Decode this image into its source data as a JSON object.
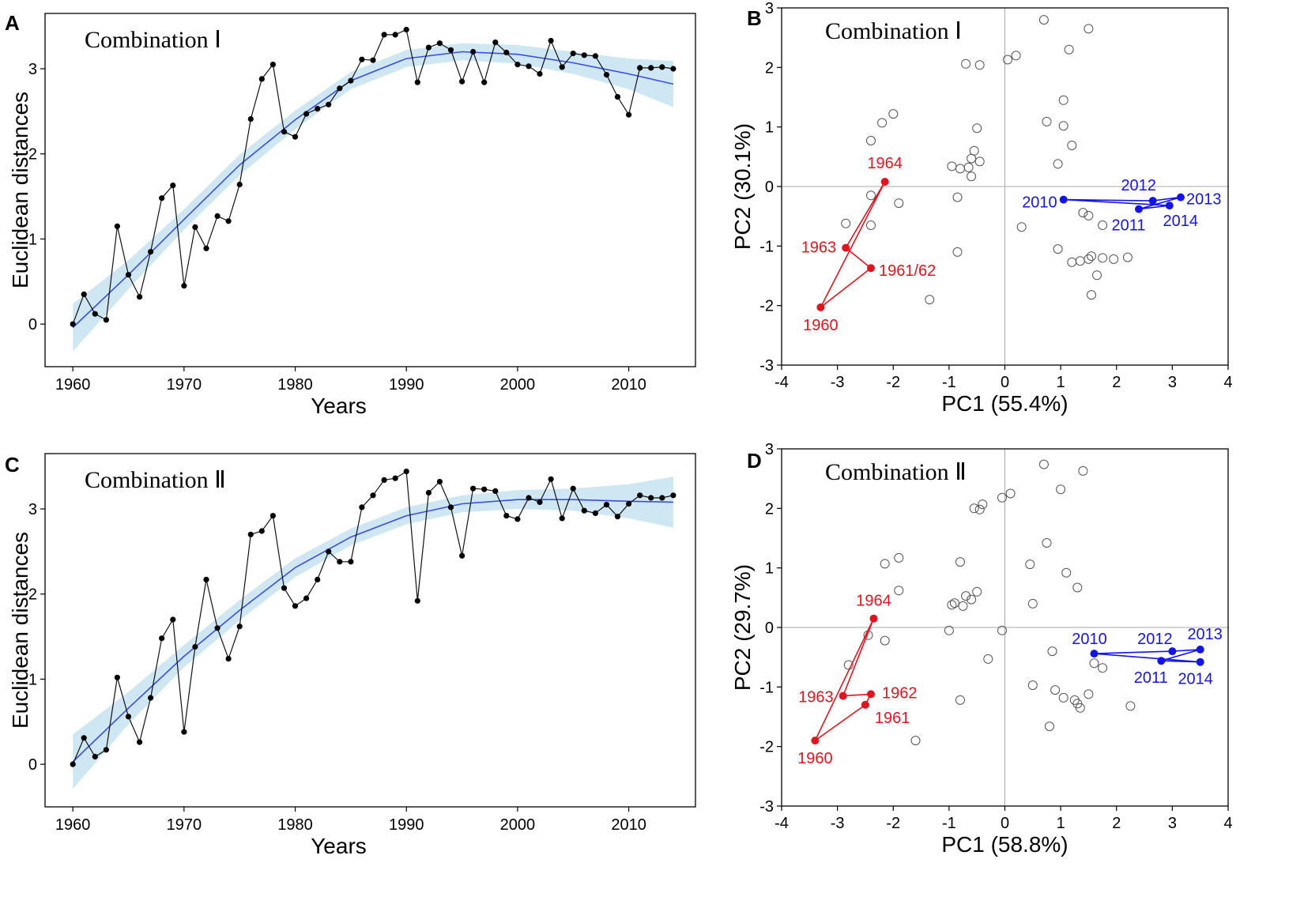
{
  "chart_data": [
    {
      "panel": "A",
      "type": "line",
      "title": "Combination Ⅰ",
      "xlabel": "Years",
      "ylabel": "Euclidean distances",
      "xlim": [
        1957.5,
        2016
      ],
      "ylim": [
        -0.5,
        3.65
      ],
      "xticks": [
        1960,
        1970,
        1980,
        1990,
        2000,
        2010
      ],
      "yticks": [
        0,
        1,
        2,
        3
      ],
      "series": [
        {
          "name": "observed",
          "x": [
            1960,
            1961,
            1962,
            1963,
            1964,
            1965,
            1966,
            1967,
            1968,
            1969,
            1970,
            1971,
            1972,
            1973,
            1974,
            1975,
            1976,
            1977,
            1978,
            1979,
            1980,
            1981,
            1982,
            1983,
            1984,
            1985,
            1986,
            1987,
            1988,
            1989,
            1990,
            1991,
            1992,
            1993,
            1994,
            1995,
            1996,
            1997,
            1998,
            1999,
            2000,
            2001,
            2002,
            2003,
            2004,
            2005,
            2006,
            2007,
            2008,
            2009,
            2010,
            2011,
            2012,
            2013,
            2014
          ],
          "y": [
            0.0,
            0.35,
            0.12,
            0.05,
            1.15,
            0.58,
            0.32,
            0.85,
            1.48,
            1.63,
            0.45,
            1.14,
            0.89,
            1.27,
            1.21,
            1.64,
            2.41,
            2.88,
            3.05,
            2.26,
            2.2,
            2.47,
            2.53,
            2.58,
            2.77,
            2.86,
            3.11,
            3.1,
            3.4,
            3.4,
            3.46,
            2.84,
            3.25,
            3.3,
            3.22,
            2.85,
            3.2,
            2.84,
            3.31,
            3.19,
            3.05,
            3.03,
            2.94,
            3.33,
            3.02,
            3.18,
            3.16,
            3.15,
            2.93,
            2.67,
            2.46,
            3.01,
            3.01,
            3.02,
            3.0
          ]
        },
        {
          "name": "fit",
          "x": [
            1960,
            1965,
            1970,
            1975,
            1980,
            1985,
            1990,
            1995,
            2000,
            2005,
            2010,
            2014
          ],
          "y": [
            -0.04,
            0.58,
            1.23,
            1.87,
            2.4,
            2.86,
            3.12,
            3.2,
            3.17,
            3.07,
            2.94,
            2.82
          ]
        }
      ],
      "band_halfwidth": [
        0.28,
        0.17,
        0.12,
        0.12,
        0.11,
        0.1,
        0.1,
        0.1,
        0.11,
        0.13,
        0.18,
        0.27
      ]
    },
    {
      "panel": "B",
      "type": "scatter",
      "title": "Combination Ⅰ",
      "xlabel": "PC1 (55.4%)",
      "ylabel": "PC2 (30.1%)",
      "xlim": [
        -4,
        4
      ],
      "ylim": [
        -3,
        3
      ],
      "xticks": [
        -4,
        -3,
        -2,
        -1,
        0,
        1,
        2,
        3,
        4
      ],
      "yticks": [
        -3,
        -2,
        -1,
        0,
        1,
        2,
        3
      ],
      "points": [
        [
          -2.4,
          0.77
        ],
        [
          -2.2,
          1.07
        ],
        [
          -2.0,
          1.22
        ],
        [
          -2.4,
          -0.15
        ],
        [
          -1.9,
          -0.28
        ],
        [
          -2.85,
          -0.62
        ],
        [
          -2.4,
          -0.65
        ],
        [
          -1.35,
          -1.9
        ],
        [
          -0.7,
          2.06
        ],
        [
          -0.45,
          2.04
        ],
        [
          0.05,
          2.13
        ],
        [
          0.2,
          2.2
        ],
        [
          0.7,
          2.8
        ],
        [
          1.15,
          2.3
        ],
        [
          1.5,
          2.65
        ],
        [
          -0.5,
          0.98
        ],
        [
          -0.95,
          0.34
        ],
        [
          -0.8,
          0.3
        ],
        [
          -0.6,
          0.47
        ],
        [
          -0.55,
          0.6
        ],
        [
          -0.65,
          0.32
        ],
        [
          -0.45,
          0.42
        ],
        [
          -0.6,
          0.17
        ],
        [
          -0.85,
          -0.18
        ],
        [
          -0.85,
          -1.1
        ],
        [
          0.75,
          1.09
        ],
        [
          1.05,
          1.45
        ],
        [
          1.05,
          1.02
        ],
        [
          0.95,
          0.38
        ],
        [
          1.2,
          0.69
        ],
        [
          0.3,
          -0.68
        ],
        [
          0.95,
          -1.05
        ],
        [
          1.4,
          -0.44
        ],
        [
          1.5,
          -0.49
        ],
        [
          1.75,
          -0.65
        ],
        [
          1.2,
          -1.27
        ],
        [
          1.35,
          -1.25
        ],
        [
          1.5,
          -1.22
        ],
        [
          1.55,
          -1.17
        ],
        [
          1.75,
          -1.2
        ],
        [
          1.95,
          -1.22
        ],
        [
          2.2,
          -1.19
        ],
        [
          1.65,
          -1.49
        ],
        [
          1.55,
          -1.82
        ]
      ],
      "early_group": {
        "labels": [
          "1964",
          "1963",
          "1961/62",
          "1960"
        ],
        "points": [
          [
            -2.15,
            0.08
          ],
          [
            -2.85,
            -1.03
          ],
          [
            -2.4,
            -1.37
          ],
          [
            -3.3,
            -2.03
          ]
        ]
      },
      "late_group": {
        "labels": [
          "2010",
          "2012",
          "2013",
          "2011",
          "2014"
        ],
        "points": [
          [
            1.05,
            -0.22
          ],
          [
            2.65,
            -0.24
          ],
          [
            3.15,
            -0.18
          ],
          [
            2.4,
            -0.38
          ],
          [
            2.95,
            -0.32
          ]
        ]
      }
    },
    {
      "panel": "C",
      "type": "line",
      "title": "Combination Ⅱ",
      "xlabel": "Years",
      "ylabel": "Euclidean distances",
      "xlim": [
        1957.5,
        2016
      ],
      "ylim": [
        -0.5,
        3.65
      ],
      "xticks": [
        1960,
        1970,
        1980,
        1990,
        2000,
        2010
      ],
      "yticks": [
        0,
        1,
        2,
        3
      ],
      "series": [
        {
          "name": "observed",
          "x": [
            1960,
            1961,
            1962,
            1963,
            1964,
            1965,
            1966,
            1967,
            1968,
            1969,
            1970,
            1971,
            1972,
            1973,
            1974,
            1975,
            1976,
            1977,
            1978,
            1979,
            1980,
            1981,
            1982,
            1983,
            1984,
            1985,
            1986,
            1987,
            1988,
            1989,
            1990,
            1991,
            1992,
            1993,
            1994,
            1995,
            1996,
            1997,
            1998,
            1999,
            2000,
            2001,
            2002,
            2003,
            2004,
            2005,
            2006,
            2007,
            2008,
            2009,
            2010,
            2011,
            2012,
            2013,
            2014
          ],
          "y": [
            0.0,
            0.31,
            0.09,
            0.17,
            1.02,
            0.56,
            0.26,
            0.78,
            1.48,
            1.7,
            0.38,
            1.38,
            2.17,
            1.6,
            1.24,
            1.62,
            2.7,
            2.74,
            2.92,
            2.07,
            1.86,
            1.95,
            2.17,
            2.5,
            2.38,
            2.38,
            3.02,
            3.16,
            3.34,
            3.36,
            3.44,
            1.92,
            3.19,
            3.32,
            3.02,
            2.45,
            3.24,
            3.23,
            3.21,
            2.92,
            2.88,
            3.13,
            3.08,
            3.35,
            2.89,
            3.24,
            2.98,
            2.95,
            3.05,
            2.91,
            3.06,
            3.16,
            3.13,
            3.13,
            3.16
          ]
        },
        {
          "name": "fit",
          "x": [
            1960,
            1965,
            1970,
            1975,
            1980,
            1985,
            1990,
            1995,
            2000,
            2005,
            2010,
            2014
          ],
          "y": [
            0.03,
            0.66,
            1.27,
            1.81,
            2.31,
            2.67,
            2.92,
            3.06,
            3.11,
            3.11,
            3.09,
            3.08
          ]
        }
      ],
      "band_halfwidth": [
        0.32,
        0.19,
        0.13,
        0.12,
        0.11,
        0.1,
        0.1,
        0.1,
        0.11,
        0.13,
        0.2,
        0.3
      ]
    },
    {
      "panel": "D",
      "type": "scatter",
      "title": "Combination Ⅱ",
      "xlabel": "PC1 (58.8%)",
      "ylabel": "PC2 (29.7%)",
      "xlim": [
        -4,
        4
      ],
      "ylim": [
        -3,
        3
      ],
      "xticks": [
        -4,
        -3,
        -2,
        -1,
        0,
        1,
        2,
        3,
        4
      ],
      "yticks": [
        -3,
        -2,
        -1,
        0,
        1,
        2,
        3
      ],
      "points": [
        [
          -2.15,
          1.07
        ],
        [
          -1.9,
          1.17
        ],
        [
          -1.9,
          0.62
        ],
        [
          -2.45,
          -0.13
        ],
        [
          -2.15,
          -0.22
        ],
        [
          -2.8,
          -0.63
        ],
        [
          -1.6,
          -1.9
        ],
        [
          -0.95,
          0.38
        ],
        [
          -0.9,
          0.41
        ],
        [
          -0.75,
          0.36
        ],
        [
          -0.7,
          0.53
        ],
        [
          -0.6,
          0.47
        ],
        [
          -0.5,
          0.6
        ],
        [
          -0.8,
          1.1
        ],
        [
          -0.55,
          2.0
        ],
        [
          -0.45,
          1.98
        ],
        [
          -0.4,
          2.07
        ],
        [
          -0.05,
          2.18
        ],
        [
          0.1,
          2.25
        ],
        [
          0.7,
          2.74
        ],
        [
          1.0,
          2.32
        ],
        [
          1.4,
          2.63
        ],
        [
          0.75,
          1.42
        ],
        [
          0.45,
          1.06
        ],
        [
          0.5,
          0.4
        ],
        [
          1.1,
          0.92
        ],
        [
          1.3,
          0.67
        ],
        [
          -1.0,
          -0.05
        ],
        [
          -0.05,
          -0.05
        ],
        [
          -0.8,
          -1.22
        ],
        [
          -0.3,
          -0.53
        ],
        [
          0.5,
          -0.97
        ],
        [
          0.85,
          -0.4
        ],
        [
          0.9,
          -1.05
        ],
        [
          1.05,
          -1.18
        ],
        [
          1.25,
          -1.22
        ],
        [
          1.3,
          -1.28
        ],
        [
          1.35,
          -1.35
        ],
        [
          1.5,
          -1.12
        ],
        [
          1.6,
          -0.6
        ],
        [
          1.75,
          -0.68
        ],
        [
          2.25,
          -1.32
        ],
        [
          0.8,
          -1.66
        ]
      ],
      "early_group": {
        "labels": [
          "1964",
          "1963",
          "1962",
          "1961",
          "1960"
        ],
        "points": [
          [
            -2.35,
            0.15
          ],
          [
            -2.9,
            -1.15
          ],
          [
            -2.4,
            -1.12
          ],
          [
            -2.5,
            -1.3
          ],
          [
            -3.4,
            -1.9
          ]
        ]
      },
      "late_group": {
        "labels": [
          "2010",
          "2012",
          "2013",
          "2011",
          "2014"
        ],
        "points": [
          [
            1.6,
            -0.44
          ],
          [
            3.0,
            -0.4
          ],
          [
            3.5,
            -0.37
          ],
          [
            2.8,
            -0.56
          ],
          [
            3.5,
            -0.58
          ]
        ]
      }
    }
  ],
  "panel_labels": [
    "A",
    "B",
    "C",
    "D"
  ]
}
